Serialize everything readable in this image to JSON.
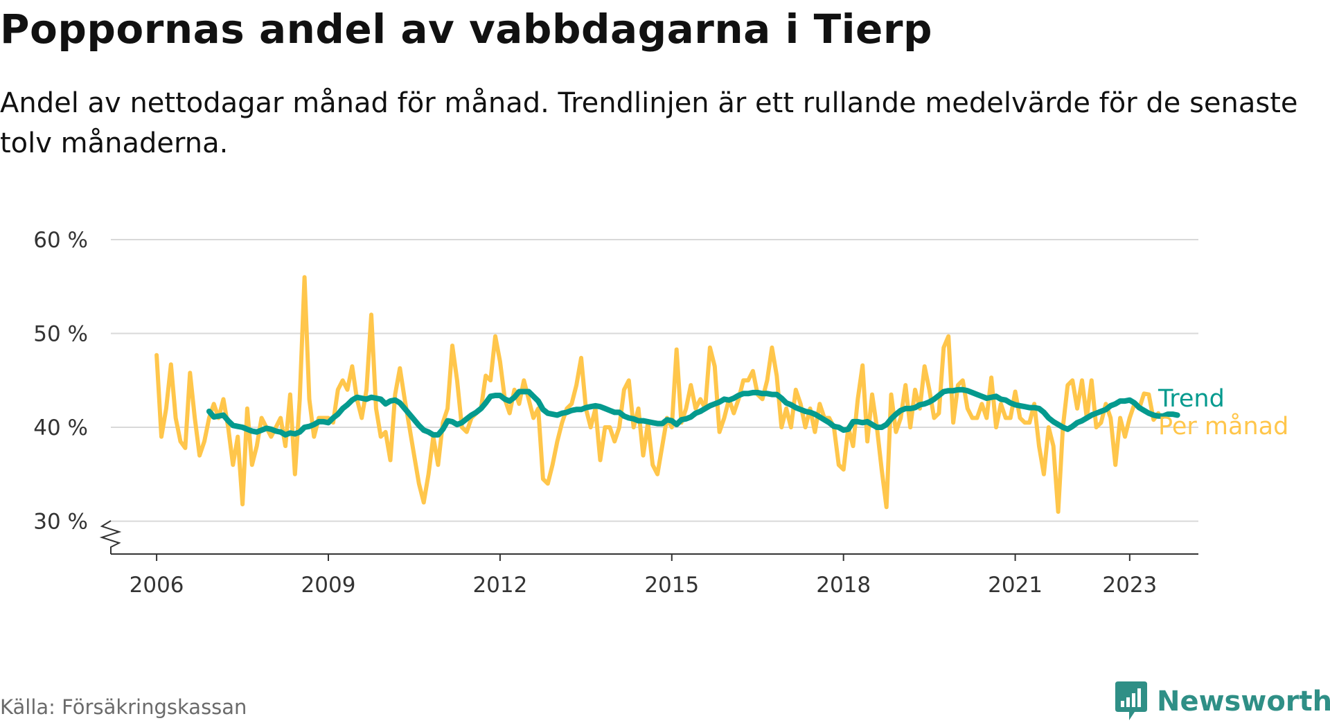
{
  "title": "Poppornas andel av vabbdagarna i Tierp",
  "subtitle": "Andel av nettodagar månad för månad. Trendlinjen är ett rullande medelvärde för de senaste tolv månaderna.",
  "source": "Källa: Försäkringskassan",
  "brand": "Newsworthy",
  "colors": {
    "monthly": "#ffc64b",
    "trend": "#049a8e",
    "grid": "#d9d9d9",
    "axis": "#333333",
    "brand": "#2f8f86"
  },
  "chart_data": {
    "type": "line",
    "title": "Poppornas andel av vabbdagarna i Tierp",
    "xlabel": "",
    "ylabel": "",
    "ylim": [
      26.5,
      60
    ],
    "xlim": [
      2005.2,
      2024.2
    ],
    "grid": true,
    "y_ticks": [
      30,
      40,
      50,
      60
    ],
    "y_tick_labels": [
      "30 %",
      "40 %",
      "50 %",
      "60 %"
    ],
    "x_ticks": [
      2006,
      2009,
      2012,
      2015,
      2018,
      2021,
      2023
    ],
    "x_tick_labels": [
      "2006",
      "2009",
      "2012",
      "2015",
      "2018",
      "2021",
      "2023"
    ],
    "legend": "right, at line ends",
    "series": [
      {
        "name": "Per månad",
        "key": "monthly",
        "start": 2006.0,
        "step": 0.0833333,
        "values": [
          47.7,
          39.0,
          42.0,
          46.7,
          41.0,
          38.5,
          37.8,
          45.8,
          41.0,
          37.0,
          38.5,
          41.0,
          42.5,
          41.0,
          43.0,
          40.0,
          36.0,
          39.0,
          31.8,
          42.0,
          36.0,
          38.0,
          41.0,
          40.0,
          39.0,
          40.0,
          41.0,
          38.0,
          43.5,
          35.0,
          43.0,
          56.0,
          43.0,
          39.0,
          41.0,
          41.0,
          41.0,
          40.5,
          44.0,
          45.0,
          44.0,
          46.5,
          43.0,
          41.0,
          44.0,
          52.0,
          42.0,
          39.0,
          39.5,
          36.5,
          43.5,
          46.3,
          43.0,
          40.0,
          37.0,
          34.0,
          32.0,
          35.0,
          39.0,
          36.0,
          40.5,
          42.0,
          48.7,
          45.0,
          40.0,
          39.5,
          41.0,
          41.5,
          42.0,
          45.5,
          45.0,
          49.7,
          47.0,
          43.0,
          41.5,
          44.0,
          42.5,
          45.0,
          43.0,
          41.0,
          42.0,
          34.5,
          34.0,
          36.0,
          38.5,
          40.5,
          42.0,
          42.5,
          44.5,
          47.4,
          42.0,
          40.0,
          42.0,
          36.5,
          40.0,
          40.0,
          38.5,
          40.0,
          44.0,
          45.0,
          40.0,
          42.0,
          37.0,
          40.5,
          36.0,
          35.0,
          38.0,
          41.0,
          40.0,
          48.3,
          40.5,
          42.0,
          44.5,
          42.0,
          43.0,
          42.0,
          48.5,
          46.5,
          39.5,
          41.0,
          43.0,
          41.5,
          43.0,
          45.0,
          45.0,
          46.0,
          43.5,
          43.0,
          45.0,
          48.5,
          45.5,
          40.0,
          42.0,
          40.0,
          44.0,
          42.5,
          40.0,
          42.0,
          39.5,
          42.5,
          41.0,
          41.0,
          40.0,
          36.0,
          35.5,
          40.0,
          38.0,
          43.0,
          46.6,
          38.5,
          43.5,
          40.0,
          35.5,
          31.5,
          43.5,
          39.5,
          41.0,
          44.5,
          40.0,
          44.0,
          42.0,
          46.5,
          44.0,
          41.0,
          41.5,
          48.5,
          49.7,
          40.5,
          44.5,
          45.0,
          42.0,
          41.0,
          41.0,
          42.5,
          41.0,
          45.3,
          40.0,
          42.5,
          41.0,
          41.0,
          43.8,
          41.0,
          40.5,
          40.5,
          42.5,
          38.0,
          35.0,
          40.0,
          38.0,
          31.0,
          40.0,
          44.5,
          45.0,
          42.0,
          45.0,
          41.0,
          45.0,
          40.0,
          40.5,
          42.5,
          41.0,
          36.0,
          41.0,
          39.0,
          41.0,
          42.5,
          42.0,
          43.6,
          43.5,
          40.8,
          41.5
        ]
      },
      {
        "name": "Trend",
        "key": "trend",
        "start": 2006.9167,
        "step": 0.0833333,
        "values": [
          41.7,
          41.1,
          41.2,
          41.3,
          40.7,
          40.2,
          40.1,
          40.0,
          39.8,
          39.6,
          39.5,
          39.7,
          39.9,
          39.8,
          39.6,
          39.5,
          39.2,
          39.4,
          39.3,
          39.5,
          40.0,
          40.1,
          40.3,
          40.6,
          40.6,
          40.5,
          41.0,
          41.4,
          42.0,
          42.4,
          42.9,
          43.2,
          43.1,
          43.0,
          43.2,
          43.1,
          43.0,
          42.5,
          42.8,
          42.9,
          42.6,
          42.0,
          41.4,
          40.8,
          40.2,
          39.7,
          39.5,
          39.2,
          39.2,
          39.8,
          40.7,
          40.6,
          40.3,
          40.5,
          40.9,
          41.3,
          41.6,
          42.0,
          42.6,
          43.3,
          43.4,
          43.4,
          43.0,
          42.8,
          43.2,
          43.8,
          43.8,
          43.8,
          43.3,
          42.8,
          41.9,
          41.5,
          41.4,
          41.3,
          41.5,
          41.6,
          41.8,
          41.9,
          41.9,
          42.1,
          42.2,
          42.3,
          42.2,
          42.0,
          41.8,
          41.6,
          41.6,
          41.2,
          41.0,
          40.9,
          40.7,
          40.7,
          40.6,
          40.5,
          40.4,
          40.4,
          40.8,
          40.7,
          40.3,
          40.8,
          40.9,
          41.1,
          41.5,
          41.7,
          42.0,
          42.3,
          42.5,
          42.7,
          43.0,
          42.9,
          43.1,
          43.4,
          43.6,
          43.6,
          43.7,
          43.7,
          43.6,
          43.6,
          43.5,
          43.5,
          43.1,
          42.6,
          42.4,
          42.1,
          41.9,
          41.7,
          41.6,
          41.4,
          41.1,
          40.8,
          40.5,
          40.1,
          40.0,
          39.7,
          39.8,
          40.6,
          40.6,
          40.5,
          40.6,
          40.3,
          40.0,
          40.0,
          40.3,
          40.9,
          41.4,
          41.8,
          42.0,
          42.0,
          42.1,
          42.4,
          42.5,
          42.7,
          43.0,
          43.4,
          43.8,
          43.9,
          43.9,
          44.0,
          44.0,
          43.9,
          43.7,
          43.5,
          43.3,
          43.1,
          43.2,
          43.3,
          43.0,
          42.9,
          42.6,
          42.4,
          42.3,
          42.2,
          42.1,
          42.1,
          42.0,
          41.6,
          41.0,
          40.6,
          40.3,
          40.0,
          39.8,
          40.1,
          40.5,
          40.7,
          41.0,
          41.3,
          41.5,
          41.7,
          41.9,
          42.3,
          42.5,
          42.8,
          42.8,
          42.9,
          42.6,
          42.1,
          41.8,
          41.5,
          41.3,
          41.2,
          41.2,
          41.4,
          41.4,
          41.3
        ]
      }
    ]
  }
}
